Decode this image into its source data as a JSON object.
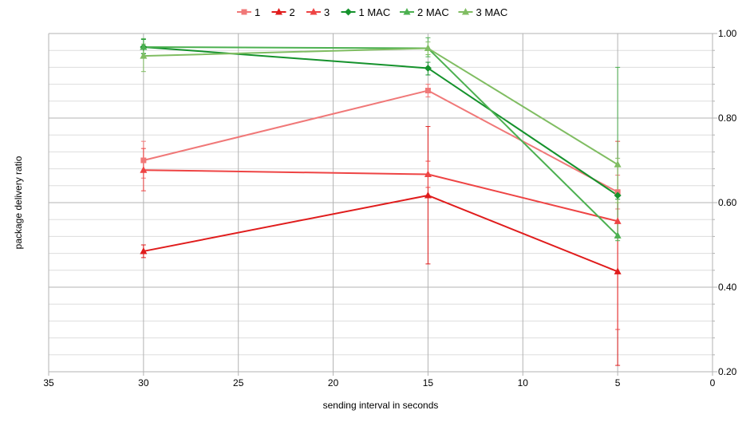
{
  "chart_data": {
    "type": "line",
    "xlabel": "sending interval in seconds",
    "ylabel": "package delivery ratio",
    "xlim": [
      35,
      0
    ],
    "x_ticks": [
      35,
      30,
      25,
      20,
      15,
      10,
      5,
      0
    ],
    "x_tick_labels": [
      "35",
      "30",
      "25",
      "20",
      "15",
      "10",
      "5",
      "0"
    ],
    "ylim": [
      0.2,
      1.0
    ],
    "y_ticks": [
      0.2,
      0.4,
      0.6,
      0.8,
      1.0
    ],
    "y_tick_labels": [
      "0.20",
      "0.40",
      "0.60",
      "0.80",
      "1.00"
    ],
    "y_axis_side": "right",
    "grid": true,
    "legend_position": "top-center",
    "x": [
      30,
      15,
      5
    ],
    "series": [
      {
        "name": "1",
        "color": "#f07878",
        "marker": "square",
        "values": [
          0.7,
          0.865,
          0.625
        ],
        "error_low": [
          0.658,
          0.85,
          0.585
        ],
        "error_high": [
          0.745,
          0.88,
          0.665
        ]
      },
      {
        "name": "2",
        "color": "#e01c1c",
        "marker": "triangle",
        "values": [
          0.485,
          0.617,
          0.437
        ],
        "error_low": [
          0.47,
          0.455,
          0.215
        ],
        "error_high": [
          0.5,
          0.78,
          0.6
        ]
      },
      {
        "name": "3",
        "color": "#ee4444",
        "marker": "triangle",
        "values": [
          0.677,
          0.667,
          0.556
        ],
        "error_low": [
          0.628,
          0.636,
          0.3
        ],
        "error_high": [
          0.728,
          0.698,
          0.745
        ]
      },
      {
        "name": "1 MAC",
        "color": "#15922c",
        "marker": "diamond",
        "values": [
          0.968,
          0.918,
          0.617
        ],
        "error_low": [
          0.952,
          0.902,
          0.608
        ],
        "error_high": [
          0.986,
          0.932,
          0.626
        ]
      },
      {
        "name": "2 MAC",
        "color": "#4cb050",
        "marker": "triangle",
        "values": [
          0.968,
          0.965,
          0.522
        ],
        "error_low": [
          0.953,
          0.945,
          0.51
        ],
        "error_high": [
          0.988,
          0.99,
          0.92
        ]
      },
      {
        "name": "3 MAC",
        "color": "#80bd62",
        "marker": "triangle",
        "values": [
          0.947,
          0.965,
          0.69
        ],
        "error_low": [
          0.91,
          0.95,
          0.6
        ],
        "error_high": [
          0.975,
          0.98,
          0.705
        ]
      }
    ]
  }
}
